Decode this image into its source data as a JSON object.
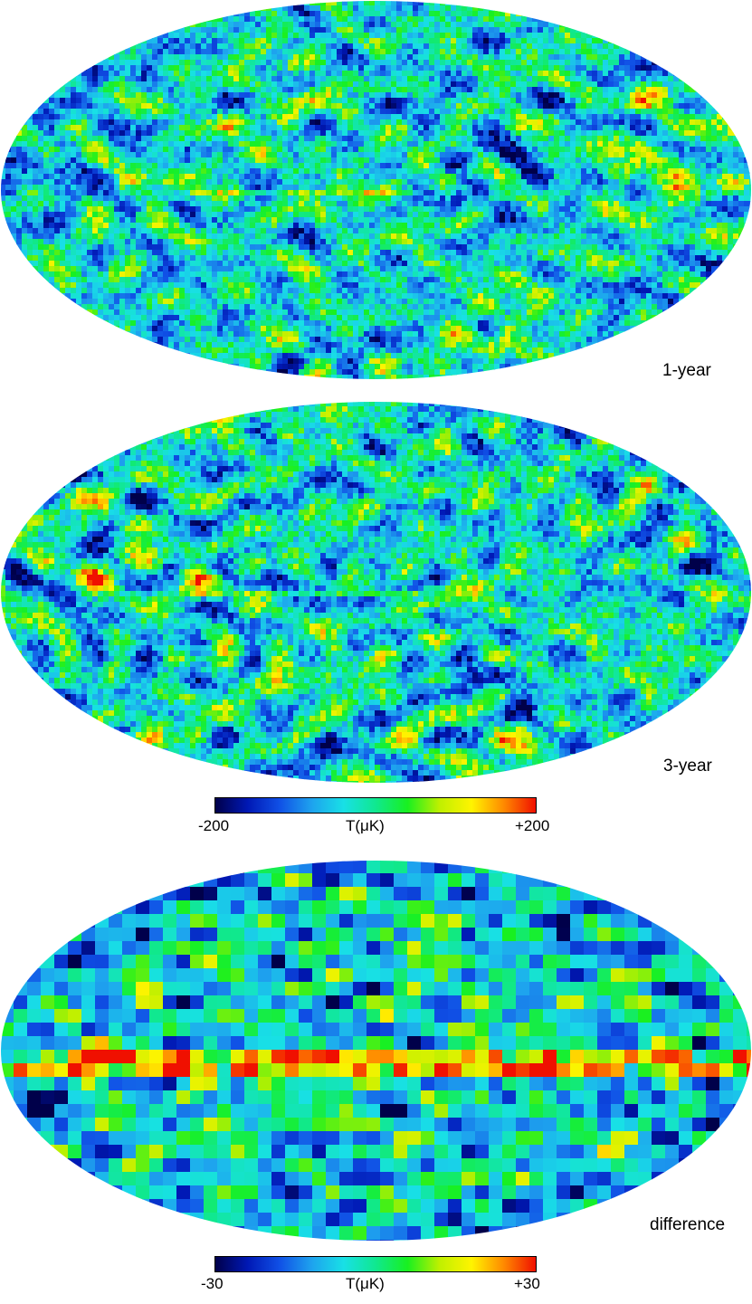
{
  "panels": [
    {
      "label": "1-year"
    },
    {
      "label": "3-year"
    },
    {
      "label": "difference"
    }
  ],
  "colorbars": [
    {
      "min_label": "-200",
      "mid_label": "T(μK)",
      "max_label": "+200"
    },
    {
      "min_label": "-30",
      "mid_label": "T(μK)",
      "max_label": "+30"
    }
  ],
  "colormap": [
    "#00004a",
    "#0018b4",
    "#1050e6",
    "#1ea2ee",
    "#18e0e6",
    "#10e890",
    "#18f020",
    "#c0f000",
    "#fff400",
    "#ff8a00",
    "#f01000"
  ]
}
